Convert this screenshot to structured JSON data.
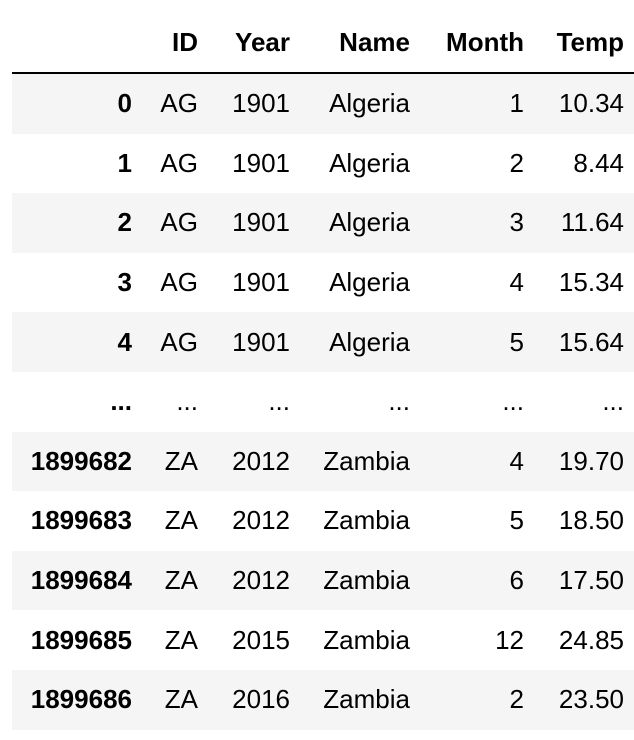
{
  "table": {
    "columns": [
      "",
      "ID",
      "Year",
      "Name",
      "Month",
      "Temp"
    ],
    "rows": [
      [
        "0",
        "AG",
        "1901",
        "Algeria",
        "1",
        "10.34"
      ],
      [
        "1",
        "AG",
        "1901",
        "Algeria",
        "2",
        "8.44"
      ],
      [
        "2",
        "AG",
        "1901",
        "Algeria",
        "3",
        "11.64"
      ],
      [
        "3",
        "AG",
        "1901",
        "Algeria",
        "4",
        "15.34"
      ],
      [
        "4",
        "AG",
        "1901",
        "Algeria",
        "5",
        "15.64"
      ],
      [
        "...",
        "...",
        "...",
        "...",
        "...",
        "..."
      ],
      [
        "1899682",
        "ZA",
        "2012",
        "Zambia",
        "4",
        "19.70"
      ],
      [
        "1899683",
        "ZA",
        "2012",
        "Zambia",
        "5",
        "18.50"
      ],
      [
        "1899684",
        "ZA",
        "2012",
        "Zambia",
        "6",
        "17.50"
      ],
      [
        "1899685",
        "ZA",
        "2015",
        "Zambia",
        "12",
        "24.85"
      ],
      [
        "1899686",
        "ZA",
        "2016",
        "Zambia",
        "2",
        "23.50"
      ]
    ]
  }
}
